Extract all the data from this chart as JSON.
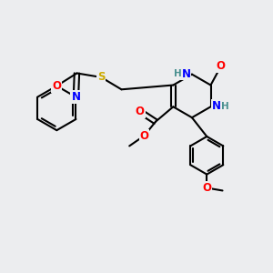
{
  "background_color": "#ecedef",
  "bond_color": "#000000",
  "bond_width": 1.5,
  "atom_colors": {
    "N": "#0000ff",
    "O": "#ff0000",
    "S": "#ccaa00",
    "H": "#4a9090",
    "C": "#000000"
  },
  "font_size": 8.5,
  "title": ""
}
